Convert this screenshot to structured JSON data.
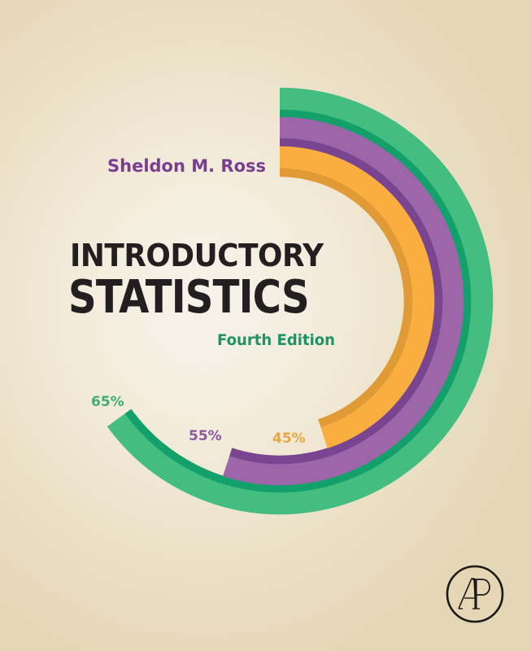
{
  "cover": {
    "author": "Sheldon M. Ross",
    "title_line1": "INTRODUCTORY",
    "title_line2": "STATISTICS",
    "edition": "Fourth Edition",
    "publisher_logo": {
      "icon": "ap-academic-press-logo",
      "letters": "AP"
    }
  },
  "colors": {
    "green": "#43bd80",
    "green_dark": "#14a06a",
    "purple": "#9c66a8",
    "purple_dark": "#7a4590",
    "orange": "#f9ae3f",
    "orange_dark": "#e09a36",
    "title_text": "#231f20",
    "author_text": "#7a3e8e",
    "edition_text": "#1e9462"
  },
  "chart_data": {
    "type": "pie",
    "subtype": "radial-progress-rings",
    "title": "",
    "series": [
      {
        "name": "outer ring",
        "label": "65%",
        "value": 65,
        "color": "#43bd80"
      },
      {
        "name": "middle ring",
        "label": "55%",
        "value": 55,
        "color": "#9c66a8"
      },
      {
        "name": "inner ring",
        "label": "45%",
        "value": 45,
        "color": "#f9ae3f"
      }
    ],
    "start_angle": "top (12 o'clock), clockwise",
    "max": 100
  },
  "labels": {
    "pct_65": "65%",
    "pct_55": "55%",
    "pct_45": "45%"
  }
}
